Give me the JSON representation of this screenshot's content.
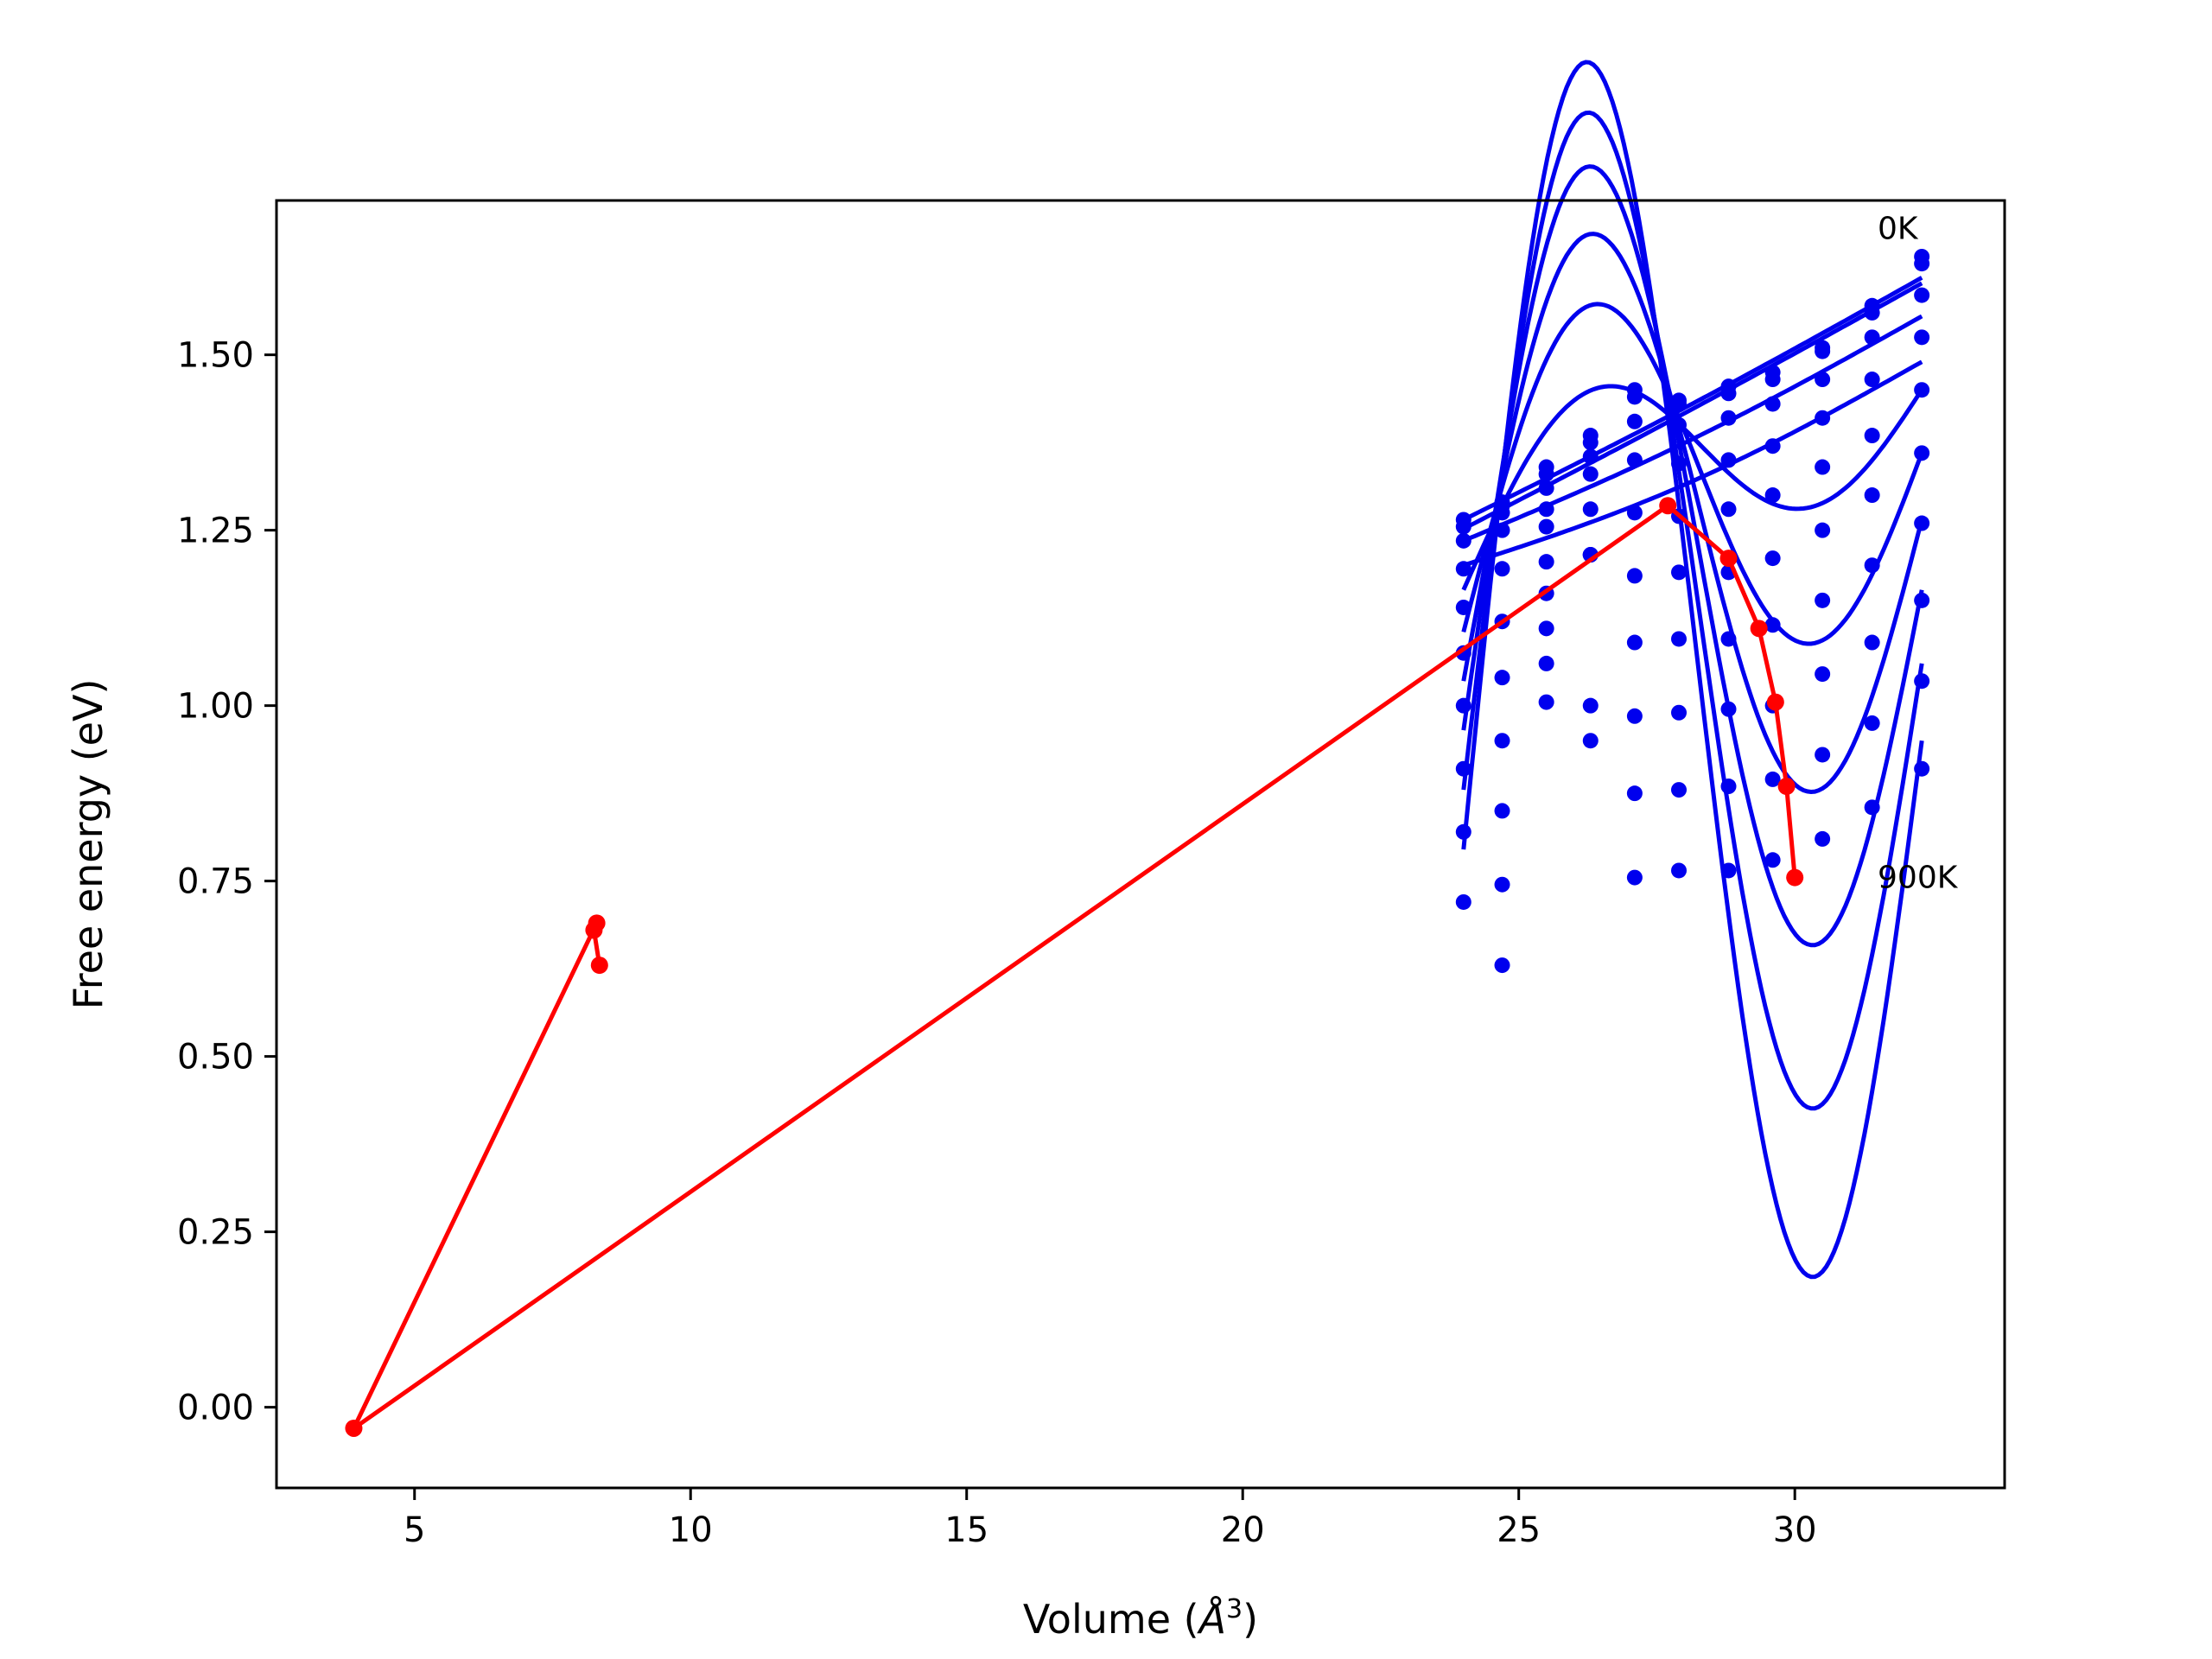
{
  "chart_data": {
    "type": "line",
    "title": "",
    "xlabel": "Volume (",
    "xlabel_symbol": "Å",
    "xlabel_exp": "3",
    "xlabel_close": ")",
    "ylabel": "Free energy (eV)",
    "xlim": [
      2.5,
      33.8
    ],
    "ylim": [
      -0.115,
      1.72
    ],
    "xticks": [
      5,
      10,
      15,
      20,
      25,
      30
    ],
    "xtick_labels": [
      "5",
      "10",
      "15",
      "20",
      "25",
      "30"
    ],
    "yticks": [
      0.0,
      0.25,
      0.5,
      0.75,
      1.0,
      1.25,
      1.5
    ],
    "ytick_labels": [
      "0.00",
      "0.25",
      "0.50",
      "0.75",
      "1.00",
      "1.25",
      "1.50"
    ],
    "grid": false,
    "colors": {
      "isotherms": "#0000ee",
      "equilibrium": "#ff0000"
    },
    "annotations": [
      {
        "text": "0K",
        "x": 31.5,
        "y": 1.68
      },
      {
        "text": "900K",
        "x": 31.5,
        "y": 0.755
      }
    ],
    "isotherm_fit_range": [
      24.0,
      32.3
    ],
    "isotherms": [
      {
        "points": [
          [
            24.0,
            1.265
          ],
          [
            24.7,
            1.29
          ],
          [
            25.5,
            1.34
          ],
          [
            26.3,
            1.385
          ],
          [
            27.1,
            1.45
          ],
          [
            27.9,
            1.435
          ],
          [
            28.8,
            1.455
          ],
          [
            29.6,
            1.475
          ],
          [
            30.5,
            1.51
          ],
          [
            31.4,
            1.57
          ],
          [
            32.3,
            1.63
          ]
        ],
        "fit": [
          1.265,
          1.61,
          -0.007,
          0
        ]
      },
      {
        "points": [
          [
            24.0,
            1.255
          ],
          [
            24.7,
            1.285
          ],
          [
            25.5,
            1.33
          ],
          [
            26.3,
            1.375
          ],
          [
            27.1,
            1.44
          ],
          [
            27.9,
            1.43
          ],
          [
            28.8,
            1.445
          ],
          [
            29.6,
            1.465
          ],
          [
            30.5,
            1.505
          ],
          [
            31.4,
            1.56
          ],
          [
            32.3,
            1.64
          ]
        ],
        "fit": [
          1.252,
          1.602,
          -0.004,
          0
        ]
      },
      {
        "points": [
          [
            24.0,
            1.235
          ],
          [
            24.7,
            1.275
          ],
          [
            25.5,
            1.31
          ],
          [
            26.3,
            1.355
          ],
          [
            27.1,
            1.405
          ],
          [
            27.9,
            1.4
          ],
          [
            28.8,
            1.41
          ],
          [
            29.6,
            1.43
          ],
          [
            30.5,
            1.465
          ],
          [
            31.4,
            1.525
          ],
          [
            32.3,
            1.585
          ]
        ],
        "fit": [
          1.235,
          1.555,
          -0.015,
          0
        ]
      },
      {
        "points": [
          [
            24.0,
            1.195
          ],
          [
            24.7,
            1.25
          ],
          [
            25.5,
            1.28
          ],
          [
            26.3,
            1.33
          ],
          [
            27.1,
            1.35
          ],
          [
            27.9,
            1.345
          ],
          [
            28.8,
            1.35
          ],
          [
            29.6,
            1.37
          ],
          [
            30.5,
            1.41
          ],
          [
            31.4,
            1.465
          ],
          [
            32.3,
            1.525
          ]
        ],
        "fit": [
          1.2,
          1.49,
          -0.025,
          0
        ]
      },
      {
        "points": [
          [
            24.0,
            1.14
          ],
          [
            24.7,
            1.195
          ],
          [
            25.5,
            1.255
          ],
          [
            26.3,
            1.28
          ],
          [
            27.1,
            1.275
          ],
          [
            27.9,
            1.27
          ],
          [
            28.8,
            1.28
          ],
          [
            29.6,
            1.3
          ],
          [
            30.5,
            1.34
          ],
          [
            31.4,
            1.385
          ],
          [
            32.3,
            1.45
          ]
        ],
        "fit": [
          1.165,
          1.45,
          0.075,
          0.15
        ]
      },
      {
        "points": [
          [
            24.0,
            1.075
          ],
          [
            24.7,
            1.12
          ],
          [
            25.5,
            1.205
          ],
          [
            26.3,
            1.215
          ],
          [
            27.1,
            1.185
          ],
          [
            27.9,
            1.19
          ],
          [
            28.8,
            1.19
          ],
          [
            29.6,
            1.21
          ],
          [
            30.5,
            1.25
          ],
          [
            31.4,
            1.3
          ],
          [
            32.3,
            1.36
          ]
        ],
        "fit": [
          1.105,
          1.36,
          0.13,
          0.3
        ]
      },
      {
        "points": [
          [
            24.0,
            1.0
          ],
          [
            24.7,
            1.04
          ],
          [
            25.5,
            1.16
          ],
          [
            26.3,
            1.215
          ],
          [
            27.1,
            1.09
          ],
          [
            27.9,
            1.095
          ],
          [
            28.8,
            1.095
          ],
          [
            29.6,
            1.115
          ],
          [
            30.5,
            1.15
          ],
          [
            31.4,
            1.2
          ],
          [
            32.3,
            1.26
          ]
        ],
        "fit": [
          1.035,
          1.265,
          0.17,
          0.45
        ]
      },
      {
        "points": [
          [
            24.0,
            0.91
          ],
          [
            24.7,
            0.95
          ],
          [
            25.5,
            1.11
          ],
          [
            26.3,
            1.215
          ],
          [
            27.1,
            0.985
          ],
          [
            27.9,
            0.99
          ],
          [
            28.8,
            0.995
          ],
          [
            29.6,
            1.0
          ],
          [
            30.5,
            1.045
          ],
          [
            31.4,
            1.09
          ],
          [
            32.3,
            1.15
          ]
        ],
        "fit": [
          0.965,
          1.165,
          0.205,
          0.6
        ]
      },
      {
        "points": [
          [
            24.0,
            0.82
          ],
          [
            24.7,
            0.85
          ],
          [
            25.5,
            1.06
          ],
          [
            26.3,
            1.0
          ],
          [
            27.1,
            0.875
          ],
          [
            27.9,
            0.88
          ],
          [
            28.8,
            0.885
          ],
          [
            29.6,
            0.895
          ],
          [
            30.5,
            0.93
          ],
          [
            31.4,
            0.975
          ],
          [
            32.3,
            1.035
          ]
        ],
        "fit": [
          0.88,
          1.06,
          0.23,
          0.75
        ]
      },
      {
        "points": [
          [
            24.0,
            0.72
          ],
          [
            24.7,
            0.745
          ],
          [
            25.5,
            1.005
          ],
          [
            26.3,
            0.95
          ],
          [
            27.1,
            0.755
          ],
          [
            27.9,
            0.765
          ],
          [
            28.8,
            0.765
          ],
          [
            29.6,
            0.78
          ],
          [
            30.5,
            0.81
          ],
          [
            31.4,
            0.855
          ],
          [
            32.3,
            0.91
          ]
        ],
        "fit": [
          0.795,
          0.95,
          0.25,
          0.9
        ]
      }
    ],
    "extra_points": [
      [
        24.7,
        0.63
      ]
    ],
    "equilibrium_line": {
      "x": [
        8.35,
        8.25,
        8.3,
        3.9,
        27.7,
        28.8,
        29.35,
        29.65,
        29.85,
        30.0
      ],
      "y": [
        0.63,
        0.68,
        0.69,
        -0.03,
        1.285,
        1.21,
        1.11,
        1.005,
        0.885,
        0.755
      ]
    }
  }
}
